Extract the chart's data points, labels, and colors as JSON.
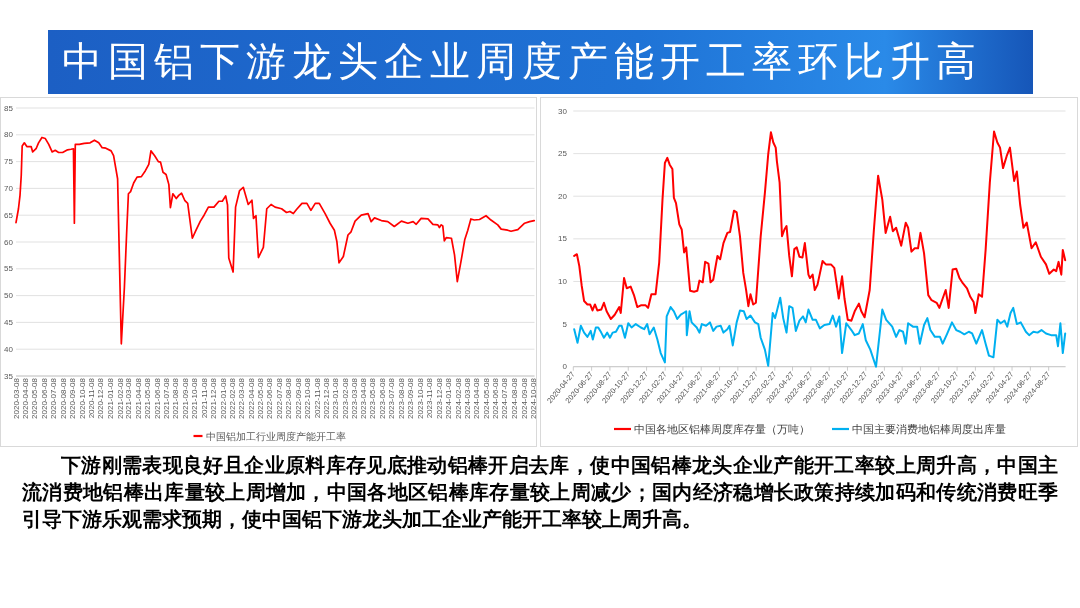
{
  "chart_data": [
    {
      "type": "other",
      "title": "中国铝下游龙头企业周度产能开工率环比升高",
      "annotations": [
        "下游刚需表现良好且企业原料库存见底推动铝棒开启去库，使中国铝棒龙头企业产能开工率较上周升高，中国主流消费地铝棒出库量较上周增加，中国各地区铝棒库存量较上周减少；国内经济稳增长政策持续加码和传统消费旺季引导下游乐观需求预期，使中国铝下游龙头加工企业产能开工率较上周升高。"
      ]
    },
    {
      "type": "line",
      "grid": "y",
      "legend": "bottom",
      "xlim": [
        "2020-03-08",
        "2024-10-12"
      ],
      "ylim": [
        35,
        85
      ],
      "yticks": [
        35,
        40,
        45,
        50,
        55,
        60,
        65,
        70,
        75,
        80,
        85
      ],
      "xticks": [
        "2020-03-08",
        "2020-04-08",
        "2020-05-08",
        "2020-06-08",
        "2020-07-08",
        "2020-08-08",
        "2020-09-08",
        "2020-10-08",
        "2020-11-08",
        "2020-12-08",
        "2021-01-08",
        "2021-02-08",
        "2021-03-08",
        "2021-04-08",
        "2021-05-08",
        "2021-06-08",
        "2021-07-08",
        "2021-08-08",
        "2021-09-08",
        "2021-10-08",
        "2021-11-08",
        "2021-12-08",
        "2022-01-08",
        "2022-02-08",
        "2022-03-08",
        "2022-04-08",
        "2022-05-08",
        "2022-06-08",
        "2022-07-08",
        "2022-08-08",
        "2022-09-08",
        "2022-10-08",
        "2022-11-08",
        "2022-12-08",
        "2023-01-08",
        "2023-02-08",
        "2023-03-08",
        "2023-04-08",
        "2023-05-08",
        "2023-06-08",
        "2023-07-08",
        "2023-08-08",
        "2023-09-08",
        "2023-10-08",
        "2023-11-08",
        "2023-12-08",
        "2024-01-08",
        "2024-02-08",
        "2024-03-08",
        "2024-04-08",
        "2024-05-08",
        "2024-06-08",
        "2024-07-08",
        "2024-08-08",
        "2024-09-08",
        "2024-10-08"
      ],
      "series": [
        {
          "name": "中国铝加工行业周度产能开工率",
          "color": "#ff0000",
          "x": [
            "2020-03-08",
            "2020-03-16",
            "2020-03-21",
            "2020-03-25",
            "2020-03-28",
            "2020-04-04",
            "2020-04-12",
            "2020-04-26",
            "2020-05-01",
            "2020-05-12",
            "2020-05-20",
            "2020-05-31",
            "2020-06-11",
            "2020-06-22",
            "2020-07-03",
            "2020-07-13",
            "2020-07-24",
            "2020-08-06",
            "2020-08-22",
            "2020-09-02",
            "2020-09-10",
            "2020-09-13",
            "2020-09-16",
            "2020-09-29",
            "2020-10-15",
            "2020-11-03",
            "2020-11-17",
            "2020-12-01",
            "2020-12-12",
            "2020-12-24",
            "2021-01-10",
            "2021-01-18",
            "2021-01-31",
            "2021-02-12",
            "2021-02-22",
            "2021-03-01",
            "2021-03-07",
            "2021-03-14",
            "2021-03-24",
            "2021-04-04",
            "2021-04-18",
            "2021-05-01",
            "2021-05-12",
            "2021-05-19",
            "2021-05-31",
            "2021-06-12",
            "2021-06-19",
            "2021-06-27",
            "2021-07-07",
            "2021-07-16",
            "2021-07-21",
            "2021-07-29",
            "2021-08-09",
            "2021-08-17",
            "2021-08-26",
            "2021-09-06",
            "2021-09-15",
            "2021-09-30",
            "2021-10-12",
            "2021-10-26",
            "2021-11-07",
            "2021-11-21",
            "2021-12-09",
            "2021-12-25",
            "2022-01-05",
            "2022-01-16",
            "2022-01-22",
            "2022-01-26",
            "2022-02-09",
            "2022-02-17",
            "2022-03-02",
            "2022-03-14",
            "2022-03-30",
            "2022-04-11",
            "2022-04-16",
            "2022-04-24",
            "2022-05-02",
            "2022-05-18",
            "2022-05-29",
            "2022-06-12",
            "2022-06-25",
            "2022-07-16",
            "2022-08-01",
            "2022-08-12",
            "2022-08-23",
            "2022-09-03",
            "2022-09-20",
            "2022-10-06",
            "2022-10-19",
            "2022-11-02",
            "2022-11-15",
            "2022-12-04",
            "2022-12-20",
            "2023-01-03",
            "2023-01-11",
            "2023-01-18",
            "2023-02-01",
            "2023-02-16",
            "2023-02-26",
            "2023-03-11",
            "2023-03-31",
            "2023-04-22",
            "2023-05-02",
            "2023-05-13",
            "2023-06-04",
            "2023-06-25",
            "2023-07-16",
            "2023-08-08",
            "2023-08-29",
            "2023-09-15",
            "2023-09-25",
            "2023-10-11",
            "2023-11-02",
            "2023-11-18",
            "2023-12-04",
            "2023-12-09",
            "2023-12-15",
            "2023-12-20",
            "2023-12-25",
            "2023-12-31",
            "2024-01-17",
            "2024-01-27",
            "2024-02-05",
            "2024-02-18",
            "2024-02-29",
            "2024-03-10",
            "2024-03-20",
            "2024-03-31",
            "2024-04-17",
            "2024-05-08",
            "2024-05-24",
            "2024-06-15",
            "2024-06-26",
            "2024-07-17",
            "2024-07-28",
            "2024-08-19",
            "2024-09-10",
            "2024-09-26",
            "2024-10-11"
          ],
          "values": [
            63.6,
            66.2,
            68.7,
            72.4,
            77.9,
            78.5,
            77.8,
            77.8,
            76.8,
            77.4,
            78.5,
            79.5,
            79.3,
            78.2,
            76.8,
            77.1,
            76.7,
            76.7,
            77.2,
            77.3,
            77.4,
            63.5,
            78.2,
            78.2,
            78.4,
            78.5,
            79.0,
            78.5,
            77.6,
            77.5,
            77.0,
            76.1,
            71.8,
            41.0,
            51.5,
            61.3,
            69.0,
            69.4,
            71.0,
            72.1,
            72.2,
            73.3,
            74.5,
            77.0,
            76.1,
            75.0,
            74.9,
            73.0,
            72.6,
            70.7,
            66.4,
            69.0,
            68.1,
            68.7,
            69.1,
            67.7,
            67.2,
            60.7,
            62.2,
            63.9,
            65.0,
            66.5,
            66.5,
            67.6,
            67.6,
            68.6,
            66.9,
            57.0,
            54.4,
            66.5,
            69.6,
            70.2,
            67.0,
            67.8,
            64.4,
            64.9,
            57.1,
            59.0,
            66.2,
            67.0,
            66.5,
            66.2,
            65.5,
            65.7,
            65.3,
            66.1,
            67.2,
            67.2,
            65.9,
            67.2,
            67.2,
            65.3,
            63.5,
            62.2,
            60.1,
            56.1,
            57.3,
            61.3,
            61.9,
            63.9,
            65.0,
            65.3,
            63.8,
            64.5,
            64.0,
            63.8,
            62.9,
            63.9,
            63.5,
            63.8,
            63.3,
            64.4,
            64.3,
            63.3,
            63.2,
            62.7,
            63.2,
            63.0,
            60.2,
            60.8,
            60.7,
            57.6,
            52.6,
            56.7,
            60.4,
            62.2,
            64.3,
            64.1,
            64.2,
            64.9,
            64.1,
            63.2,
            62.4,
            62.2,
            62.0,
            62.3,
            63.5,
            63.8,
            64.0
          ]
        }
      ]
    },
    {
      "type": "line",
      "grid": "y",
      "legend": "bottom",
      "xlim": [
        "2020-04-27",
        "2024-10-22"
      ],
      "ylim": [
        0,
        30
      ],
      "yticks": [
        0,
        5,
        10,
        15,
        20,
        25,
        30
      ],
      "xticks": [
        "2020-04-27",
        "2020-06-27",
        "2020-08-27",
        "2020-10-27",
        "2020-12-27",
        "2021-02-27",
        "2021-04-27",
        "2021-06-27",
        "2021-08-27",
        "2021-10-27",
        "2021-12-27",
        "2022-02-27",
        "2022-04-27",
        "2022-06-27",
        "2022-08-27",
        "2022-10-27",
        "2022-12-27",
        "2023-02-27",
        "2023-04-27",
        "2023-06-27",
        "2023-08-27",
        "2023-10-27",
        "2023-12-27",
        "2024-02-27",
        "2024-04-27",
        "2024-06-27",
        "2024-08-27"
      ],
      "series": [
        {
          "name": "中国各地区铝棒周度库存量（万吨）",
          "color": "#ff0000",
          "x": [
            "2020-04-30",
            "2020-05-09",
            "2020-05-17",
            "2020-05-25",
            "2020-06-02",
            "2020-06-13",
            "2020-06-22",
            "2020-06-30",
            "2020-07-08",
            "2020-07-16",
            "2020-07-29",
            "2020-08-07",
            "2020-08-16",
            "2020-08-30",
            "2020-09-12",
            "2020-09-27",
            "2020-10-02",
            "2020-10-13",
            "2020-10-22",
            "2020-11-04",
            "2020-11-15",
            "2020-11-26",
            "2020-12-08",
            "2020-12-24",
            "2021-01-01",
            "2021-01-12",
            "2021-01-26",
            "2021-02-07",
            "2021-02-18",
            "2021-02-26",
            "2021-03-06",
            "2021-03-14",
            "2021-03-23",
            "2021-03-28",
            "2021-04-04",
            "2021-04-15",
            "2021-04-23",
            "2021-05-01",
            "2021-05-08",
            "2021-05-21",
            "2021-06-03",
            "2021-06-14",
            "2021-06-21",
            "2021-07-02",
            "2021-07-10",
            "2021-07-21",
            "2021-07-28",
            "2021-08-06",
            "2021-08-20",
            "2021-08-29",
            "2021-09-09",
            "2021-09-22",
            "2021-10-01",
            "2021-10-14",
            "2021-10-23",
            "2021-11-03",
            "2021-11-14",
            "2021-11-23",
            "2021-12-01",
            "2021-12-08",
            "2021-12-17",
            "2021-12-26",
            "2022-01-03",
            "2022-01-11",
            "2022-01-25",
            "2022-02-05",
            "2022-02-14",
            "2022-02-22",
            "2022-03-02",
            "2022-03-06",
            "2022-03-15",
            "2022-03-23",
            "2022-03-31",
            "2022-04-07",
            "2022-04-16",
            "2022-04-25",
            "2022-05-03",
            "2022-05-11",
            "2022-05-20",
            "2022-05-30",
            "2022-06-07",
            "2022-06-19",
            "2022-06-24",
            "2022-07-03",
            "2022-07-10",
            "2022-07-19",
            "2022-08-05",
            "2022-08-16",
            "2022-09-02",
            "2022-09-13",
            "2022-09-28",
            "2022-10-09",
            "2022-10-17",
            "2022-10-28",
            "2022-11-09",
            "2022-11-20",
            "2022-12-04",
            "2022-12-12",
            "2022-12-23",
            "2023-01-09",
            "2023-01-23",
            "2023-02-06",
            "2023-02-20",
            "2023-03-03",
            "2023-03-18",
            "2023-03-27",
            "2023-04-07",
            "2023-04-24",
            "2023-05-09",
            "2023-05-17",
            "2023-05-28",
            "2023-06-08",
            "2023-06-19",
            "2023-06-27",
            "2023-07-09",
            "2023-07-23",
            "2023-08-03",
            "2023-08-20",
            "2023-08-29",
            "2023-09-09",
            "2023-09-19",
            "2023-09-29",
            "2023-10-12",
            "2023-10-24",
            "2023-11-04",
            "2023-11-15",
            "2023-11-29",
            "2023-12-10",
            "2023-12-21",
            "2023-12-27",
            "2024-01-07",
            "2024-01-18",
            "2024-01-30",
            "2024-02-13",
            "2024-02-27",
            "2024-03-09",
            "2024-03-18",
            "2024-03-28",
            "2024-04-09",
            "2024-04-20",
            "2024-05-04",
            "2024-05-13",
            "2024-05-24",
            "2024-06-04",
            "2024-06-15",
            "2024-07-01",
            "2024-07-15",
            "2024-08-01",
            "2024-08-18",
            "2024-08-29",
            "2024-09-13",
            "2024-09-21",
            "2024-09-29",
            "2024-10-08",
            "2024-10-13",
            "2024-10-21"
          ],
          "values": [
            13.0,
            13.2,
            11.8,
            9.5,
            7.7,
            7.3,
            7.3,
            6.6,
            7.3,
            6.6,
            6.7,
            7.5,
            6.5,
            5.6,
            6.1,
            7.0,
            6.3,
            10.4,
            9.2,
            9.4,
            8.4,
            7.0,
            7.2,
            7.2,
            6.9,
            8.5,
            8.5,
            12.2,
            19.6,
            23.9,
            24.5,
            23.7,
            23.2,
            19.8,
            19.2,
            16.7,
            16.1,
            13.4,
            14.0,
            8.9,
            8.8,
            8.9,
            10.1,
            9.9,
            12.3,
            12.1,
            9.9,
            10.2,
            13.0,
            12.6,
            14.5,
            15.7,
            15.8,
            18.3,
            18.1,
            15.3,
            11.0,
            9.1,
            7.1,
            8.5,
            7.3,
            7.5,
            11.4,
            15.3,
            20.4,
            24.9,
            27.5,
            26.3,
            25.7,
            24.1,
            21.6,
            15.3,
            16.1,
            16.5,
            13.0,
            10.6,
            13.8,
            14.0,
            12.9,
            12.8,
            14.5,
            10.8,
            10.4,
            10.8,
            9.0,
            9.6,
            12.4,
            12.0,
            12.0,
            11.6,
            8.0,
            10.6,
            8.0,
            5.5,
            5.4,
            6.5,
            7.4,
            6.5,
            5.8,
            9.0,
            16.1,
            22.4,
            19.6,
            15.7,
            17.6,
            15.9,
            16.3,
            14.2,
            16.9,
            16.3,
            13.5,
            13.9,
            13.9,
            15.7,
            13.3,
            8.4,
            7.8,
            7.5,
            6.9,
            8.0,
            9.0,
            6.9,
            11.4,
            11.5,
            10.4,
            9.8,
            9.2,
            8.2,
            7.6,
            6.3,
            8.5,
            8.2,
            13.7,
            21.6,
            27.6,
            26.3,
            25.7,
            23.3,
            24.7,
            25.7,
            21.8,
            22.9,
            19.0,
            16.3,
            16.9,
            13.9,
            14.6,
            12.9,
            12.0,
            10.9,
            11.4,
            11.2,
            12.3,
            10.8,
            13.7,
            12.5
          ]
        },
        {
          "name": "中国主要消费地铝棒周度出库量",
          "color": "#00b0f0",
          "x": [
            "2020-04-30",
            "2020-05-11",
            "2020-05-22",
            "2020-06-02",
            "2020-06-13",
            "2020-06-24",
            "2020-07-01",
            "2020-07-11",
            "2020-07-19",
            "2020-07-29",
            "2020-08-07",
            "2020-08-18",
            "2020-08-27",
            "2020-09-05",
            "2020-09-16",
            "2020-09-27",
            "2020-10-05",
            "2020-10-16",
            "2020-10-27",
            "2020-11-07",
            "2020-11-21",
            "2020-12-08",
            "2020-12-19",
            "2020-12-29",
            "2021-01-06",
            "2021-01-20",
            "2021-02-01",
            "2021-02-12",
            "2021-02-26",
            "2021-03-04",
            "2021-03-17",
            "2021-03-28",
            "2021-04-08",
            "2021-04-20",
            "2021-04-29",
            "2021-05-08",
            "2021-05-10",
            "2021-05-19",
            "2021-05-26",
            "2021-06-12",
            "2021-06-21",
            "2021-06-29",
            "2021-07-13",
            "2021-07-26",
            "2021-08-06",
            "2021-08-17",
            "2021-08-31",
            "2021-09-09",
            "2021-09-22",
            "2021-09-29",
            "2021-10-10",
            "2021-10-23",
            "2021-11-03",
            "2021-11-16",
            "2021-11-25",
            "2021-12-08",
            "2021-12-23",
            "2022-01-03",
            "2022-01-11",
            "2022-01-25",
            "2022-02-05",
            "2022-02-20",
            "2022-02-28",
            "2022-03-17",
            "2022-03-27",
            "2022-04-07",
            "2022-04-16",
            "2022-04-27",
            "2022-05-08",
            "2022-05-20",
            "2022-06-01",
            "2022-06-10",
            "2022-06-19",
            "2022-07-03",
            "2022-07-14",
            "2022-07-27",
            "2022-08-11",
            "2022-08-28",
            "2022-09-08",
            "2022-09-19",
            "2022-09-30",
            "2022-10-09",
            "2022-10-23",
            "2022-11-09",
            "2022-11-20",
            "2022-12-04",
            "2022-12-17",
            "2022-12-27",
            "2023-01-11",
            "2023-01-30",
            "2023-02-10",
            "2023-02-20",
            "2023-03-05",
            "2023-03-25",
            "2023-04-07",
            "2023-04-18",
            "2023-04-30",
            "2023-05-09",
            "2023-05-17",
            "2023-06-02",
            "2023-06-16",
            "2023-06-25",
            "2023-07-09",
            "2023-07-20",
            "2023-07-30",
            "2023-08-14",
            "2023-08-31",
            "2023-09-09",
            "2023-09-23",
            "2023-10-10",
            "2023-10-24",
            "2023-11-06",
            "2023-11-20",
            "2023-12-05",
            "2023-12-16",
            "2023-12-30",
            "2024-01-18",
            "2024-01-30",
            "2024-02-10",
            "2024-02-25",
            "2024-03-09",
            "2024-03-20",
            "2024-04-02",
            "2024-04-11",
            "2024-04-22",
            "2024-05-01",
            "2024-05-13",
            "2024-05-26",
            "2024-06-12",
            "2024-06-23",
            "2024-07-07",
            "2024-07-21",
            "2024-08-03",
            "2024-08-18",
            "2024-09-04",
            "2024-09-21",
            "2024-09-27",
            "2024-10-05",
            "2024-10-13",
            "2024-10-21"
          ],
          "values": [
            4.4,
            2.8,
            4.8,
            4.0,
            3.5,
            4.2,
            3.2,
            4.6,
            4.6,
            4.0,
            3.4,
            4.0,
            3.4,
            4.0,
            4.1,
            4.8,
            4.8,
            3.4,
            5.1,
            4.6,
            5.0,
            4.6,
            4.4,
            5.0,
            3.8,
            4.6,
            3.2,
            1.6,
            0.5,
            5.9,
            7.0,
            6.5,
            5.6,
            6.1,
            6.3,
            6.5,
            3.7,
            6.5,
            5.2,
            4.6,
            4.0,
            5.0,
            4.8,
            5.2,
            4.2,
            4.7,
            4.8,
            4.0,
            4.4,
            4.8,
            2.5,
            5.2,
            6.6,
            6.5,
            5.6,
            6.0,
            5.2,
            5.0,
            3.4,
            2.0,
            0.1,
            6.3,
            5.7,
            8.1,
            5.7,
            4.0,
            7.1,
            6.9,
            4.2,
            5.4,
            5.9,
            5.2,
            6.7,
            5.5,
            5.5,
            4.5,
            4.9,
            5.0,
            6.0,
            4.7,
            5.9,
            1.6,
            5.1,
            4.3,
            3.7,
            3.9,
            5.0,
            3.1,
            2.0,
            0.0,
            3.5,
            6.7,
            5.5,
            4.7,
            3.5,
            4.3,
            4.1,
            2.7,
            5.1,
            4.7,
            4.7,
            2.7,
            4.9,
            5.7,
            4.3,
            3.5,
            3.5,
            2.7,
            3.8,
            5.2,
            4.3,
            4.1,
            3.8,
            4.1,
            3.9,
            2.7,
            4.3,
            2.7,
            1.3,
            1.1,
            5.5,
            5.1,
            5.4,
            4.7,
            6.3,
            6.9,
            5.0,
            5.2,
            4.1,
            3.7,
            4.1,
            4.0,
            4.3,
            3.9,
            3.7,
            3.7,
            2.4,
            5.1,
            1.6,
            3.9
          ]
        }
      ]
    }
  ]
}
